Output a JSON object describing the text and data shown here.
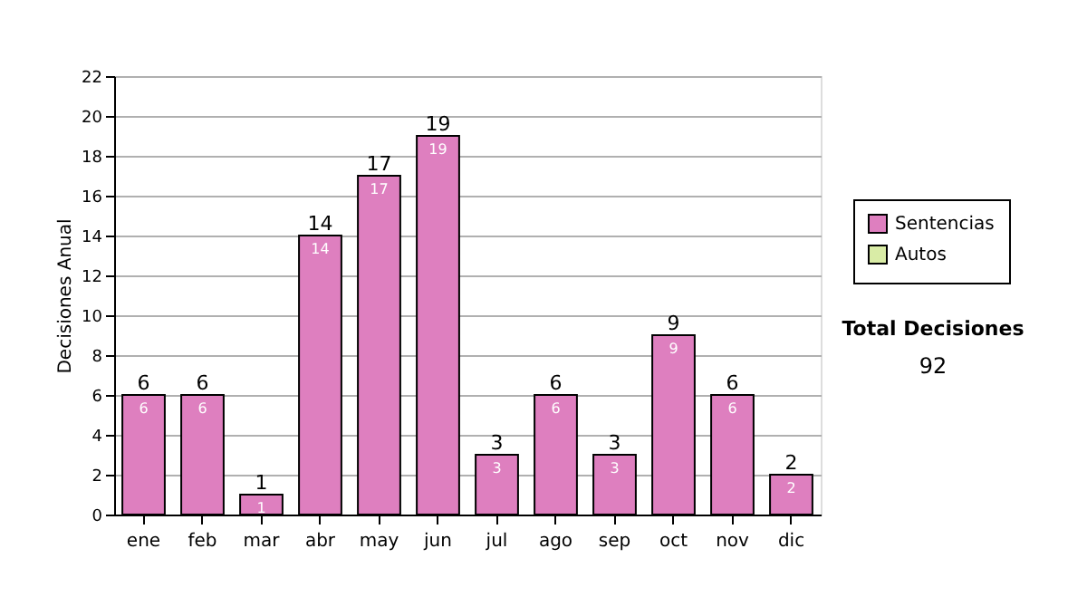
{
  "chart_data": {
    "type": "bar",
    "ylabel": "Decisiones Anual",
    "categories": [
      "ene",
      "feb",
      "mar",
      "abr",
      "may",
      "jun",
      "jul",
      "ago",
      "sep",
      "oct",
      "nov",
      "dic"
    ],
    "series": [
      {
        "name": "Sentencias",
        "color": "#de7fbf",
        "values": [
          6,
          6,
          1,
          14,
          17,
          19,
          3,
          6,
          3,
          9,
          6,
          2
        ]
      },
      {
        "name": "Autos",
        "color": "#d9eca6",
        "values": [
          null,
          null,
          null,
          null,
          null,
          null,
          null,
          null,
          null,
          null,
          null,
          null
        ]
      }
    ],
    "stacked": true,
    "data_labels": true,
    "totals": [
      "6",
      "6",
      "1",
      "14",
      "17",
      "19",
      "3",
      "6",
      "3",
      "9",
      "6",
      "2"
    ],
    "ylim": [
      0,
      22
    ],
    "yticks": [
      0,
      2,
      4,
      6,
      8,
      10,
      12,
      14,
      16,
      18,
      20,
      22
    ],
    "grid": "y",
    "legend": "right",
    "annotations": [
      "Total Decisiones",
      "92"
    ]
  }
}
